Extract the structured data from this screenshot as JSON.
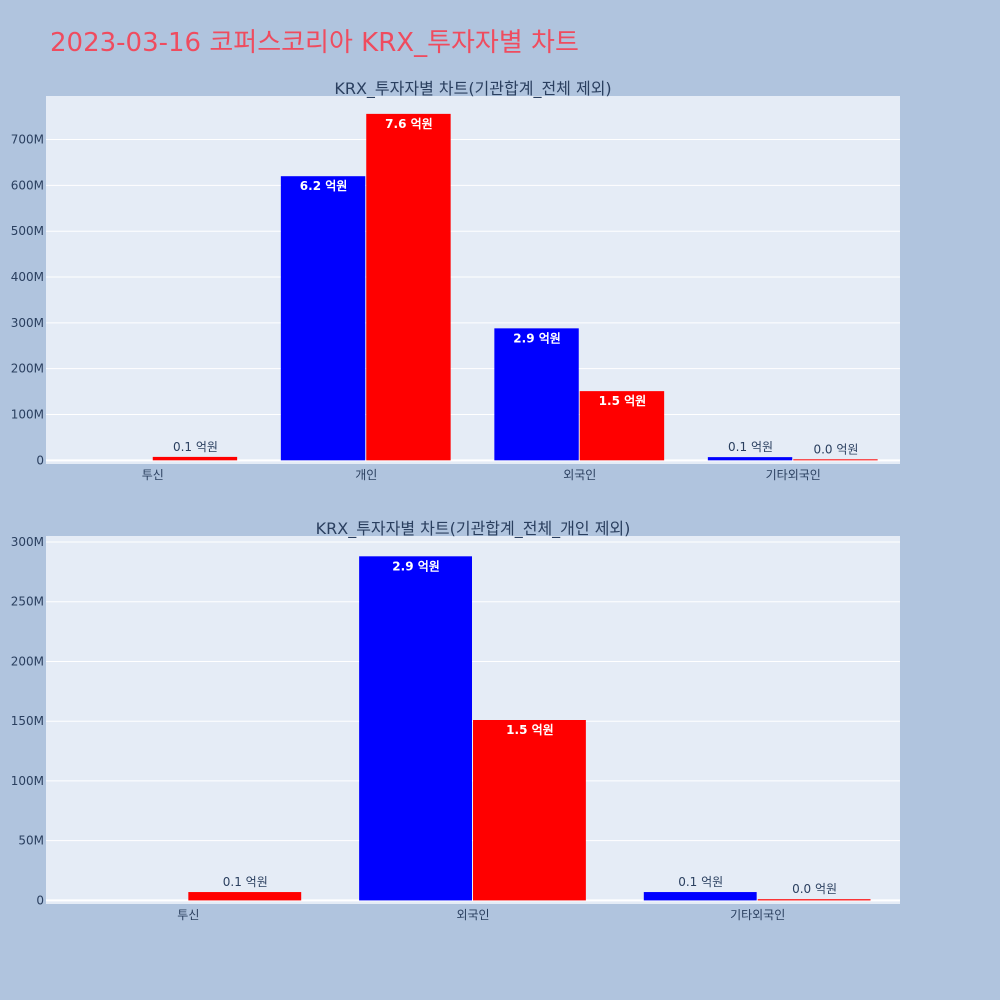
{
  "page": {
    "title": "2023-03-16 코퍼스코리아 KRX_투자자별 차트",
    "colors": {
      "background": "#b0c4de",
      "title": "#ef4c5f",
      "plot_bg": "#e5ecf6",
      "grid": "#ffffff",
      "text": "#2a3f5f",
      "buy": "#0000ff",
      "sell": "#ff0000"
    }
  },
  "chart_data": [
    {
      "type": "bar",
      "title": "KRX_투자자별 차트(기관합계_전체 제외)",
      "categories": [
        "투신",
        "개인",
        "외국인",
        "기타외국인"
      ],
      "ylim": [
        -8000000,
        795000000
      ],
      "yticks": [
        0,
        100000000,
        200000000,
        300000000,
        400000000,
        500000000,
        600000000,
        700000000
      ],
      "ytick_labels": [
        "0",
        "100M",
        "200M",
        "300M",
        "400M",
        "500M",
        "600M",
        "700M"
      ],
      "grid": true,
      "series": [
        {
          "color": "#0000ff",
          "values": [
            0,
            620000000,
            288000000,
            7000000
          ],
          "labels": [
            "",
            "6.2 억원",
            "2.9 억원",
            "0.1 억원"
          ]
        },
        {
          "color": "#ff0000",
          "values": [
            7500000,
            756000000,
            151000000,
            1000000
          ],
          "labels": [
            "0.1 억원",
            "7.6 억원",
            "1.5 억원",
            "0.0 억원"
          ]
        }
      ]
    },
    {
      "type": "bar",
      "title": "KRX_투자자별 차트(기관합계_전체_개인 제외)",
      "categories": [
        "투신",
        "외국인",
        "기타외국인"
      ],
      "ylim": [
        -3000000,
        305000000
      ],
      "yticks": [
        0,
        50000000,
        100000000,
        150000000,
        200000000,
        250000000,
        300000000
      ],
      "ytick_labels": [
        "0",
        "50M",
        "100M",
        "150M",
        "200M",
        "250M",
        "300M"
      ],
      "grid": true,
      "series": [
        {
          "color": "#0000ff",
          "values": [
            0,
            288000000,
            7000000
          ],
          "labels": [
            "",
            "2.9 억원",
            "0.1 억원"
          ]
        },
        {
          "color": "#ff0000",
          "values": [
            7000000,
            151000000,
            1000000
          ],
          "labels": [
            "0.1 억원",
            "1.5 억원",
            "0.0 억원"
          ]
        }
      ]
    }
  ]
}
